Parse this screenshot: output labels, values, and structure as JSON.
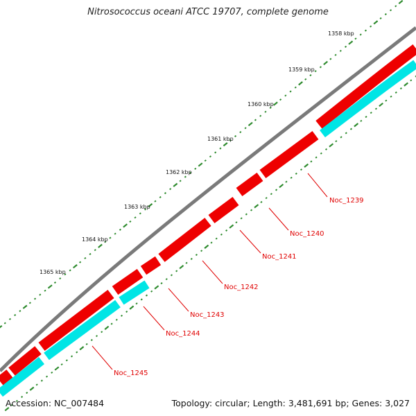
{
  "title": "Nitrosococcus oceani ATCC 19707, complete genome",
  "footer": {
    "accession": "Accession: NC_007484",
    "summary": "Topology: circular; Length: 3,481,691 bp; Genes: 3,027"
  },
  "colors": {
    "backbone": "#777777",
    "forward_gene": "#ee0000",
    "reverse_gene": "#00e5e5",
    "tick": "#2e8b2e",
    "gene_label": "#e00000"
  },
  "scale": {
    "unit": "kbp",
    "ticks": [
      {
        "kbp": 1358,
        "label": "1358 kbp"
      },
      {
        "kbp": 1359,
        "label": "1359 kbp"
      },
      {
        "kbp": 1360,
        "label": "1360 kbp"
      },
      {
        "kbp": 1361,
        "label": "1361 kbp"
      },
      {
        "kbp": 1362,
        "label": "1362 kbp"
      },
      {
        "kbp": 1363,
        "label": "1363 kbp"
      },
      {
        "kbp": 1364,
        "label": "1364 kbp"
      },
      {
        "kbp": 1365,
        "label": "1365 kbp"
      }
    ]
  },
  "genes": [
    {
      "name": "Noc_1239"
    },
    {
      "name": "Noc_1240"
    },
    {
      "name": "Noc_1241"
    },
    {
      "name": "Noc_1242"
    },
    {
      "name": "Noc_1243"
    },
    {
      "name": "Noc_1244"
    },
    {
      "name": "Noc_1245"
    }
  ]
}
